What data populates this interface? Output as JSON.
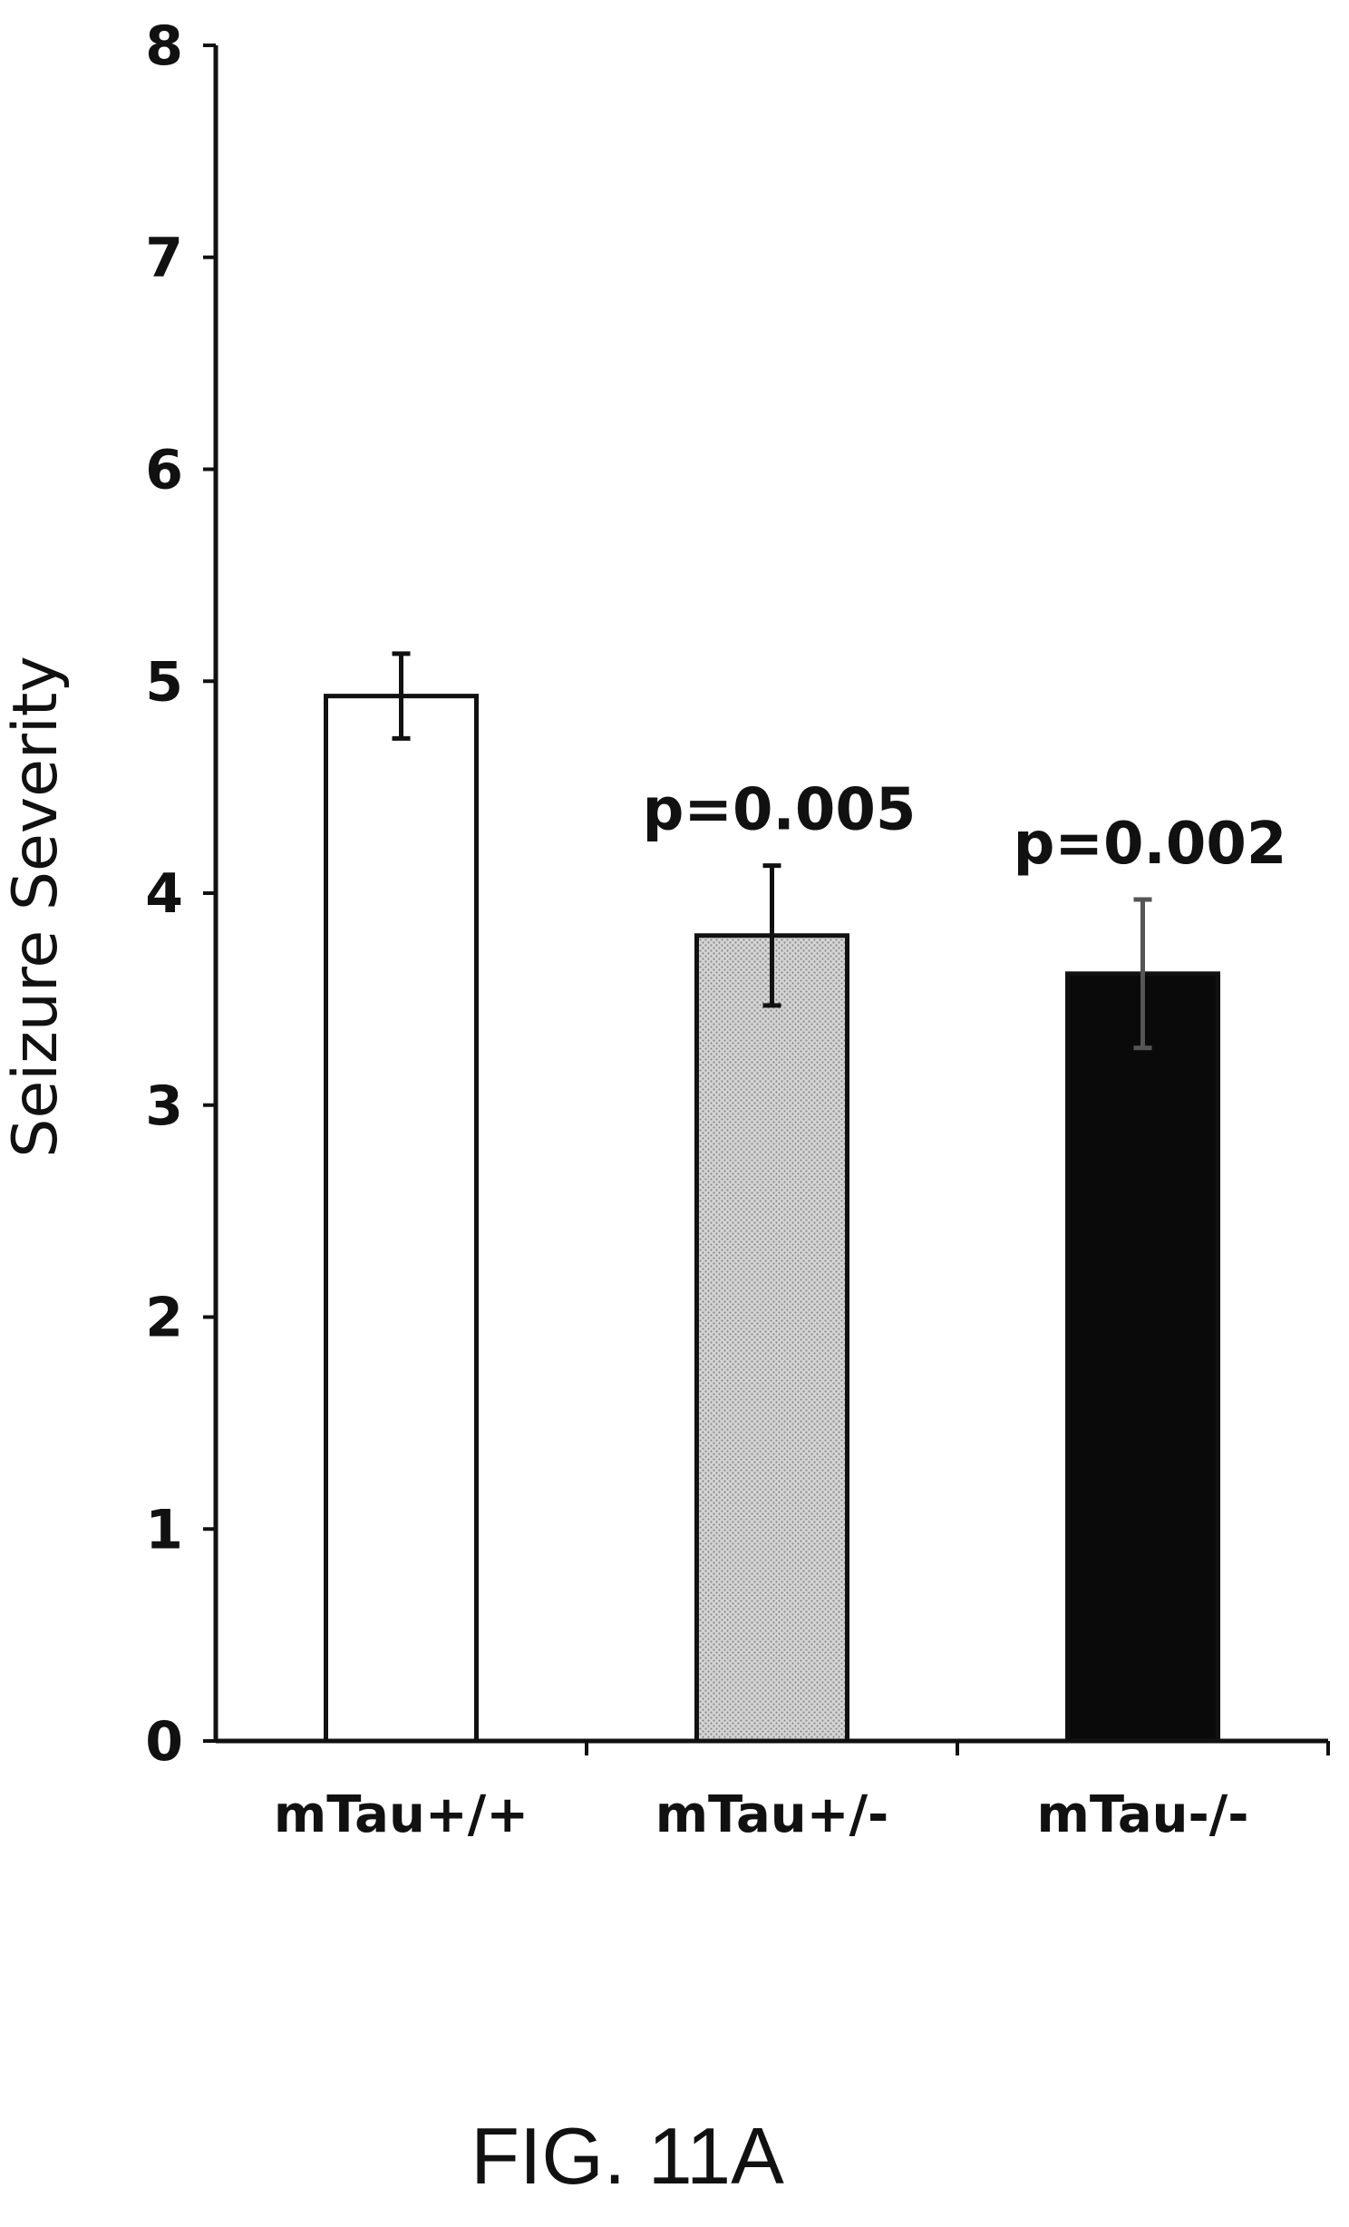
{
  "chart_data": {
    "type": "bar",
    "categories": [
      "mTau+/+",
      "mTau+/-",
      "mTau-/-"
    ],
    "values": [
      4.93,
      3.8,
      3.62
    ],
    "error": [
      0.2,
      0.33,
      0.35
    ],
    "annotations": [
      "",
      "p=0.005",
      "p=0.002"
    ],
    "bar_fills": [
      "#ffffff",
      "#c8c8c8",
      "#0a0a0a"
    ],
    "ylabel": "Seizure Severity",
    "xlabel": "",
    "ylim": [
      0,
      8
    ],
    "yticks": [
      "0",
      "1",
      "2",
      "3",
      "4",
      "5",
      "6",
      "7",
      "8"
    ],
    "grid": false,
    "legend": "none"
  },
  "figure": {
    "caption": "FIG. 11A"
  }
}
